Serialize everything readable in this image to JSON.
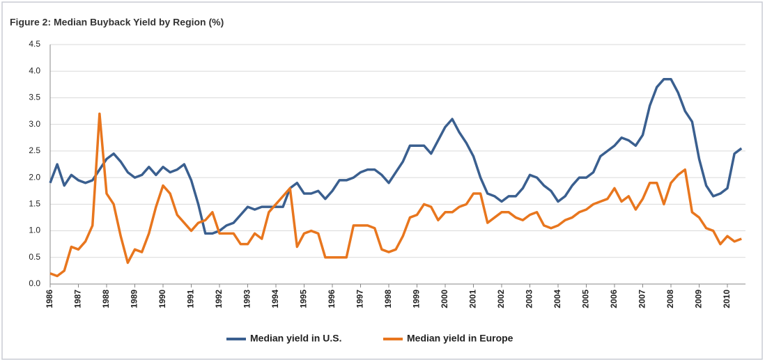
{
  "chart_data": {
    "type": "line",
    "title": "Figure 2: Median Buyback Yield by Region (%)",
    "categories": [
      "1986",
      null,
      null,
      null,
      "1987",
      null,
      null,
      null,
      "1988",
      null,
      null,
      null,
      "1989",
      null,
      null,
      null,
      "1990",
      null,
      null,
      null,
      "1991",
      null,
      null,
      null,
      "1992",
      null,
      null,
      null,
      "1993",
      null,
      null,
      null,
      "1994",
      null,
      null,
      null,
      "1995",
      null,
      null,
      null,
      "1996",
      null,
      null,
      null,
      "1997",
      null,
      null,
      null,
      "1998",
      null,
      null,
      null,
      "1999",
      null,
      null,
      null,
      "2000",
      null,
      null,
      null,
      "2001",
      null,
      null,
      null,
      "2002",
      null,
      null,
      null,
      "2003",
      null,
      null,
      null,
      "2004",
      null,
      null,
      null,
      "2005",
      null,
      null,
      null,
      "2006",
      null,
      null,
      null,
      "2007",
      null,
      null,
      null,
      "2008",
      null,
      null,
      null,
      "2009",
      null,
      null,
      null,
      "2010",
      null,
      null
    ],
    "series": [
      {
        "name": "Median yield in U.S.",
        "color": "#3a5f8f",
        "values": [
          1.9,
          2.25,
          1.85,
          2.05,
          1.95,
          1.9,
          1.95,
          2.15,
          2.35,
          2.45,
          2.3,
          2.1,
          2.0,
          2.05,
          2.2,
          2.05,
          2.2,
          2.1,
          2.15,
          2.25,
          1.95,
          1.5,
          0.95,
          0.95,
          1.0,
          1.1,
          1.15,
          1.3,
          1.45,
          1.4,
          1.45,
          1.45,
          1.45,
          1.45,
          1.8,
          1.9,
          1.7,
          1.7,
          1.75,
          1.6,
          1.75,
          1.95,
          1.95,
          2.0,
          2.1,
          2.15,
          2.15,
          2.05,
          1.9,
          2.1,
          2.3,
          2.6,
          2.6,
          2.6,
          2.45,
          2.7,
          2.95,
          3.1,
          2.85,
          2.65,
          2.4,
          2.0,
          1.7,
          1.65,
          1.55,
          1.65,
          1.65,
          1.8,
          2.05,
          2.0,
          1.85,
          1.75,
          1.55,
          1.65,
          1.85,
          2.0,
          2.0,
          2.1,
          2.4,
          2.5,
          2.6,
          2.75,
          2.7,
          2.6,
          2.8,
          3.35,
          3.7,
          3.85,
          3.85,
          3.6,
          3.25,
          3.05,
          2.35,
          1.85,
          1.65,
          1.7,
          1.8,
          2.45,
          2.55
        ]
      },
      {
        "name": "Median yield in Europe",
        "color": "#e8761e",
        "values": [
          0.2,
          0.15,
          0.25,
          0.7,
          0.65,
          0.8,
          1.1,
          3.2,
          1.7,
          1.5,
          0.9,
          0.4,
          0.65,
          0.6,
          0.95,
          1.45,
          1.85,
          1.7,
          1.3,
          1.15,
          1.0,
          1.15,
          1.2,
          1.35,
          0.95,
          0.95,
          0.95,
          0.75,
          0.75,
          0.95,
          0.85,
          1.35,
          1.5,
          1.65,
          1.8,
          0.7,
          0.95,
          1.0,
          0.95,
          0.5,
          0.5,
          0.5,
          0.5,
          1.1,
          1.1,
          1.1,
          1.05,
          0.65,
          0.6,
          0.65,
          0.9,
          1.25,
          1.3,
          1.5,
          1.45,
          1.2,
          1.35,
          1.35,
          1.45,
          1.5,
          1.7,
          1.7,
          1.15,
          1.25,
          1.35,
          1.35,
          1.25,
          1.2,
          1.3,
          1.35,
          1.1,
          1.05,
          1.1,
          1.2,
          1.25,
          1.35,
          1.4,
          1.5,
          1.55,
          1.6,
          1.8,
          1.55,
          1.65,
          1.4,
          1.6,
          1.9,
          1.9,
          1.5,
          1.9,
          2.05,
          2.15,
          1.35,
          1.25,
          1.05,
          1.0,
          0.75,
          0.9,
          0.8,
          0.85
        ]
      }
    ],
    "ylim": [
      0,
      4.5
    ],
    "yticks": [
      {
        "value": 0,
        "label": "0.0"
      },
      {
        "value": 0.5,
        "label": "0.5"
      },
      {
        "value": 1,
        "label": "1.0"
      },
      {
        "value": 1.5,
        "label": "1.5"
      },
      {
        "value": 2,
        "label": "2.0"
      },
      {
        "value": 2.5,
        "label": "2.5"
      },
      {
        "value": 3,
        "label": "3.0"
      },
      {
        "value": 3.5,
        "label": "3.5"
      },
      {
        "value": 4,
        "label": "4.0"
      },
      {
        "value": 4.5,
        "label": "4.5"
      }
    ],
    "grid": true,
    "legend": "bottom"
  }
}
